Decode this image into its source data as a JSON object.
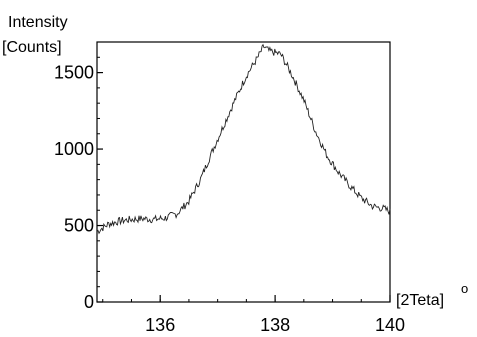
{
  "chart_data": {
    "type": "line",
    "ylabel_line1": "Intensity",
    "ylabel_line2": "[Counts]",
    "xlabel": "[2Teta]",
    "xlabel_sup": "o",
    "xlim": [
      134.9,
      140
    ],
    "ylim": [
      0,
      1700
    ],
    "x_ticks": [
      136,
      138,
      140
    ],
    "y_ticks": [
      0,
      500,
      1000,
      1500
    ],
    "x_minor_step": 0.5,
    "y_minor_step": 100,
    "grid": false,
    "series": [
      {
        "x": [
          134.9,
          135.1,
          135.3,
          135.5,
          135.7,
          135.9,
          136.1,
          136.3,
          136.5,
          136.7,
          136.9,
          137.1,
          137.3,
          137.5,
          137.7,
          137.8,
          137.9,
          138.1,
          138.3,
          138.5,
          138.7,
          138.9,
          139.1,
          139.3,
          139.5,
          139.7,
          139.9,
          140.0
        ],
        "y": [
          460,
          510,
          530,
          540,
          545,
          540,
          550,
          580,
          660,
          800,
          980,
          1150,
          1320,
          1480,
          1600,
          1670,
          1640,
          1620,
          1480,
          1320,
          1120,
          960,
          850,
          760,
          680,
          625,
          610,
          590
        ]
      }
    ]
  }
}
